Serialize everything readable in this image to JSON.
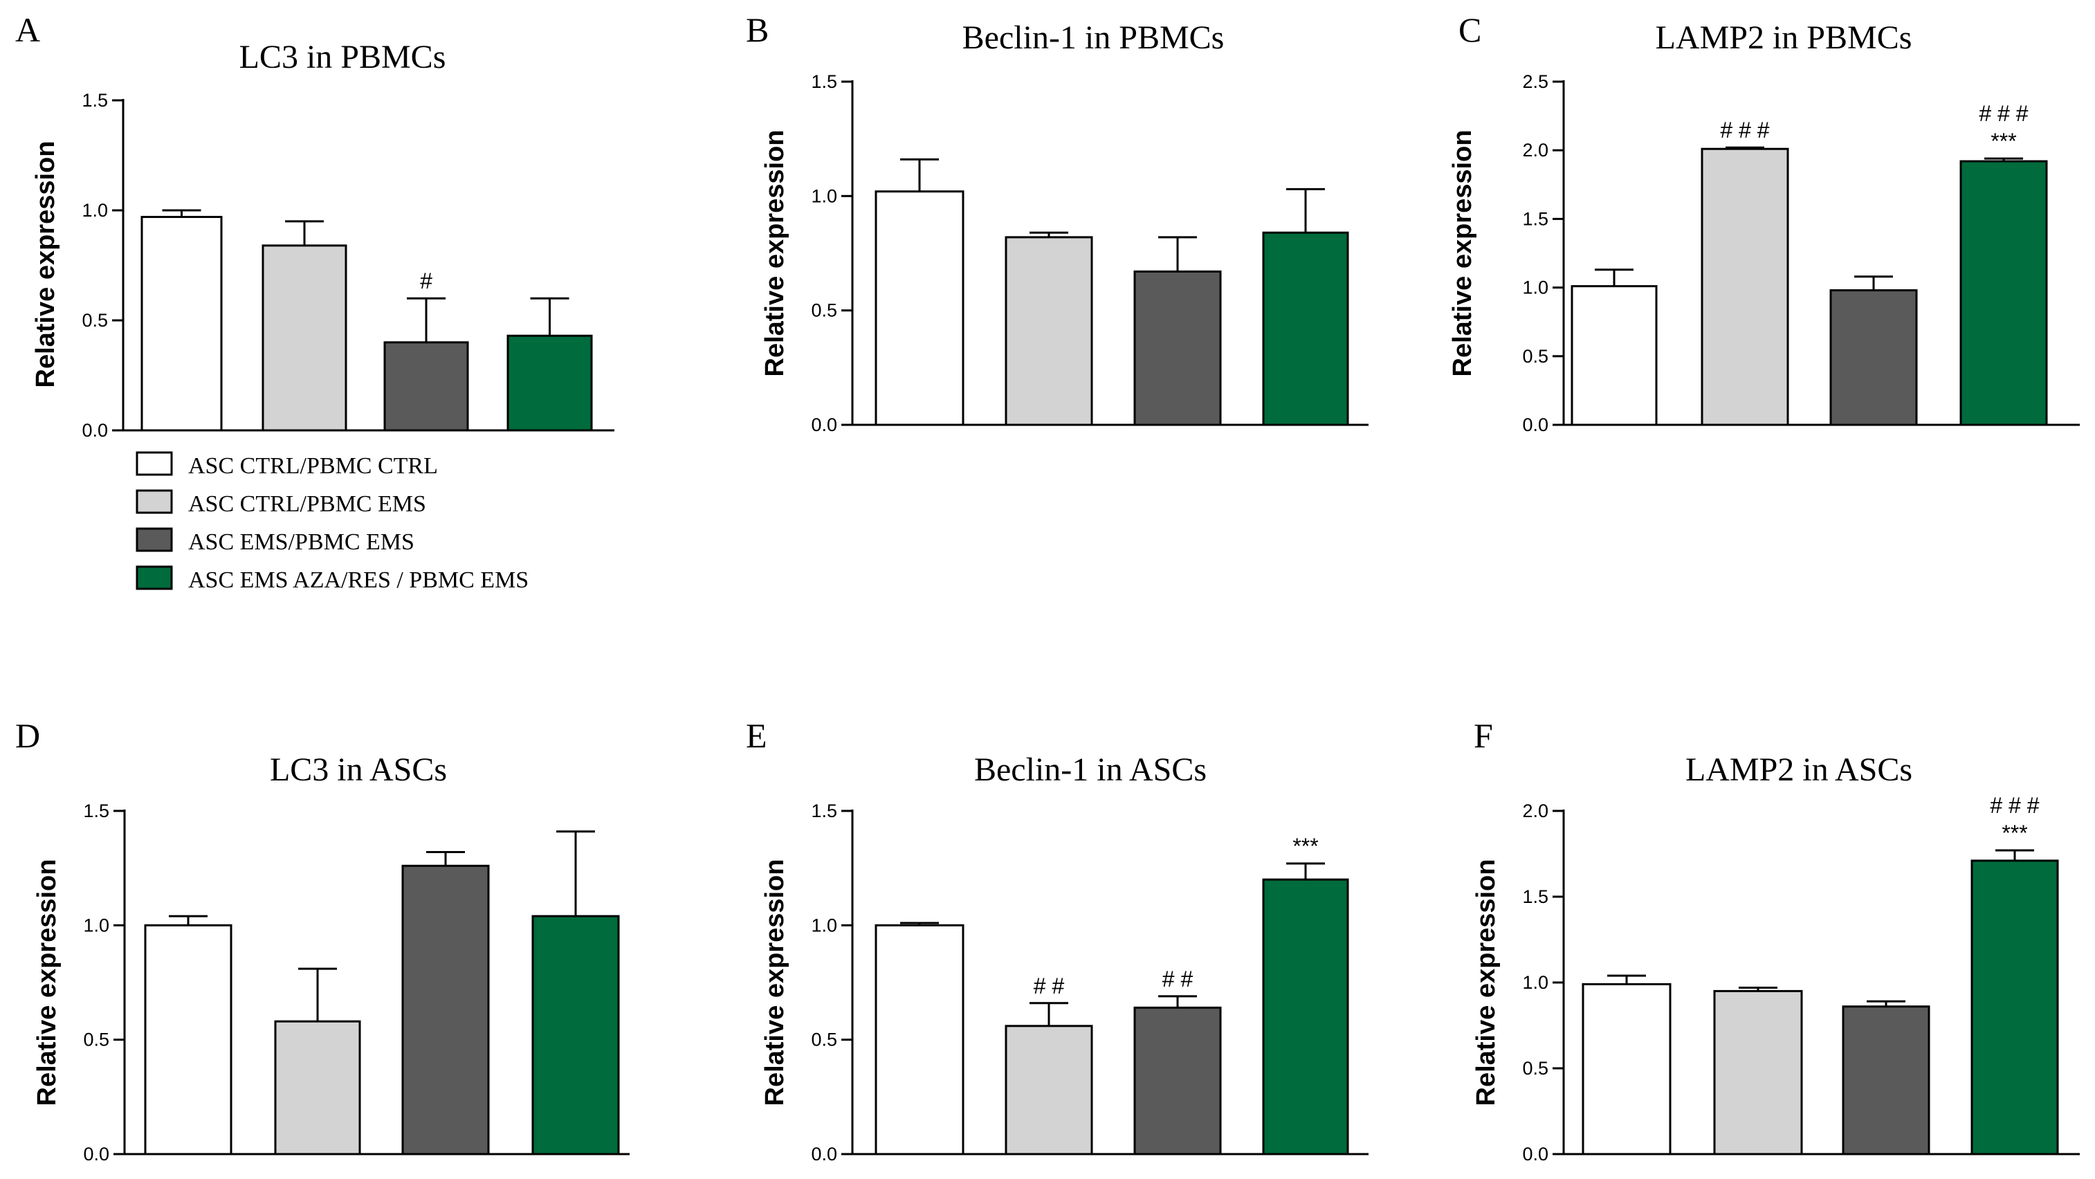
{
  "legend": {
    "entries": [
      {
        "label": "ASC CTRL/PBMC CTRL",
        "color": "#ffffff"
      },
      {
        "label": "ASC CTRL/PBMC EMS",
        "color": "#d3d3d3"
      },
      {
        "label": "ASC EMS/PBMC EMS",
        "color": "#5a5a5a"
      },
      {
        "label": "ASC EMS AZA/RES / PBMC EMS",
        "color": "#006b3c"
      }
    ]
  },
  "chart_data": [
    {
      "panel": "A",
      "type": "bar",
      "title": "LC3 in PBMCs",
      "ylabel": "Relative expression",
      "ylim": [
        0,
        1.5
      ],
      "yticks": [
        0,
        0.5,
        1.0,
        1.5
      ],
      "ytick_labels": [
        "0.0",
        "0.5",
        "1.0",
        "1.5"
      ],
      "series": [
        {
          "name": "ASC CTRL/PBMC CTRL",
          "value": 0.97,
          "error": 0.03,
          "annotations": []
        },
        {
          "name": "ASC CTRL/PBMC EMS",
          "value": 0.84,
          "error": 0.11,
          "annotations": []
        },
        {
          "name": "ASC EMS/PBMC EMS",
          "value": 0.4,
          "error": 0.2,
          "annotations": [
            "#"
          ]
        },
        {
          "name": "ASC EMS AZA/RES / PBMC EMS",
          "value": 0.43,
          "error": 0.17,
          "annotations": []
        }
      ]
    },
    {
      "panel": "B",
      "type": "bar",
      "title": "Beclin-1 in PBMCs",
      "ylabel": "Relative expression",
      "ylim": [
        0,
        1.5
      ],
      "yticks": [
        0,
        0.5,
        1.0,
        1.5
      ],
      "ytick_labels": [
        "0.0",
        "0.5",
        "1.0",
        "1.5"
      ],
      "series": [
        {
          "name": "ASC CTRL/PBMC CTRL",
          "value": 1.02,
          "error": 0.14,
          "annotations": []
        },
        {
          "name": "ASC CTRL/PBMC EMS",
          "value": 0.82,
          "error": 0.02,
          "annotations": []
        },
        {
          "name": "ASC EMS/PBMC EMS",
          "value": 0.67,
          "error": 0.15,
          "annotations": []
        },
        {
          "name": "ASC EMS AZA/RES / PBMC EMS",
          "value": 0.84,
          "error": 0.19,
          "annotations": []
        }
      ]
    },
    {
      "panel": "C",
      "type": "bar",
      "title": "LAMP2 in PBMCs",
      "ylabel": "Relative expression",
      "ylim": [
        0,
        2.5
      ],
      "yticks": [
        0,
        0.5,
        1.0,
        1.5,
        2.0,
        2.5
      ],
      "ytick_labels": [
        "0.0",
        "0.5",
        "1.0",
        "1.5",
        "2.0",
        "2.5"
      ],
      "series": [
        {
          "name": "ASC CTRL/PBMC CTRL",
          "value": 1.01,
          "error": 0.12,
          "annotations": []
        },
        {
          "name": "ASC CTRL/PBMC EMS",
          "value": 2.01,
          "error": 0.01,
          "annotations": [
            "# # #"
          ]
        },
        {
          "name": "ASC EMS/PBMC EMS",
          "value": 0.98,
          "error": 0.1,
          "annotations": []
        },
        {
          "name": "ASC EMS AZA/RES / PBMC EMS",
          "value": 1.92,
          "error": 0.02,
          "annotations": [
            "# # #",
            "***"
          ]
        }
      ]
    },
    {
      "panel": "D",
      "type": "bar",
      "title": "LC3 in ASCs",
      "ylabel": "Relative expression",
      "ylim": [
        0,
        1.5
      ],
      "yticks": [
        0,
        0.5,
        1.0,
        1.5
      ],
      "ytick_labels": [
        "0.0",
        "0.5",
        "1.0",
        "1.5"
      ],
      "series": [
        {
          "name": "ASC CTRL/PBMC CTRL",
          "value": 1.0,
          "error": 0.04,
          "annotations": []
        },
        {
          "name": "ASC CTRL/PBMC EMS",
          "value": 0.58,
          "error": 0.23,
          "annotations": []
        },
        {
          "name": "ASC EMS/PBMC EMS",
          "value": 1.26,
          "error": 0.06,
          "annotations": []
        },
        {
          "name": "ASC EMS AZA/RES / PBMC EMS",
          "value": 1.04,
          "error": 0.37,
          "annotations": []
        }
      ]
    },
    {
      "panel": "E",
      "type": "bar",
      "title": "Beclin-1 in ASCs",
      "ylabel": "Relative expression",
      "ylim": [
        0,
        1.5
      ],
      "yticks": [
        0,
        0.5,
        1.0,
        1.5
      ],
      "ytick_labels": [
        "0.0",
        "0.5",
        "1.0",
        "1.5"
      ],
      "series": [
        {
          "name": "ASC CTRL/PBMC CTRL",
          "value": 1.0,
          "error": 0.01,
          "annotations": []
        },
        {
          "name": "ASC CTRL/PBMC EMS",
          "value": 0.56,
          "error": 0.1,
          "annotations": [
            "# #"
          ]
        },
        {
          "name": "ASC EMS/PBMC EMS",
          "value": 0.64,
          "error": 0.05,
          "annotations": [
            "# #"
          ]
        },
        {
          "name": "ASC EMS AZA/RES / PBMC EMS",
          "value": 1.2,
          "error": 0.07,
          "annotations": [
            "***"
          ]
        }
      ]
    },
    {
      "panel": "F",
      "type": "bar",
      "title": "LAMP2 in ASCs",
      "ylabel": "Relative expression",
      "ylim": [
        0,
        2.0
      ],
      "yticks": [
        0,
        0.5,
        1.0,
        1.5,
        2.0
      ],
      "ytick_labels": [
        "0.0",
        "0.5",
        "1.0",
        "1.5",
        "2.0"
      ],
      "series": [
        {
          "name": "ASC CTRL/PBMC CTRL",
          "value": 0.99,
          "error": 0.05,
          "annotations": []
        },
        {
          "name": "ASC CTRL/PBMC EMS",
          "value": 0.95,
          "error": 0.02,
          "annotations": []
        },
        {
          "name": "ASC EMS/PBMC EMS",
          "value": 0.86,
          "error": 0.03,
          "annotations": []
        },
        {
          "name": "ASC EMS AZA/RES / PBMC EMS",
          "value": 1.71,
          "error": 0.06,
          "annotations": [
            "# # #",
            "***"
          ]
        }
      ]
    }
  ]
}
